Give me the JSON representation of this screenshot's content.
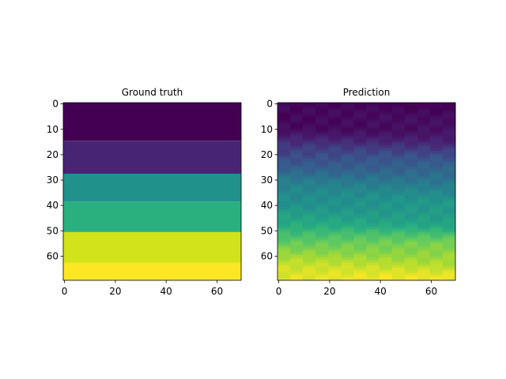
{
  "chart_data": [
    {
      "type": "heatmap",
      "title": "Ground truth",
      "grid_size": [
        70,
        70
      ],
      "x_ticks": [
        0,
        20,
        40,
        60
      ],
      "y_ticks": [
        0,
        10,
        20,
        30,
        40,
        50,
        60
      ],
      "xlim": [
        0,
        69
      ],
      "ylim": [
        69,
        0
      ],
      "y_axis_inverted": true,
      "colormap": "viridis",
      "pattern": "horizontal layers, value increasing with row index",
      "row_bands": [
        {
          "rows": [
            0,
            14
          ],
          "value": 0.0,
          "color": "#440154"
        },
        {
          "rows": [
            15,
            27
          ],
          "value": 0.12,
          "color": "#482475"
        },
        {
          "rows": [
            28,
            38
          ],
          "value": 0.45,
          "color": "#21918c"
        },
        {
          "rows": [
            39,
            50
          ],
          "value": 0.65,
          "color": "#2ab07f"
        },
        {
          "rows": [
            51,
            62
          ],
          "value": 0.9,
          "color": "#d2e21b"
        },
        {
          "rows": [
            63,
            69
          ],
          "value": 1.0,
          "color": "#fde725"
        }
      ]
    },
    {
      "type": "heatmap",
      "title": "Prediction",
      "grid_size": [
        70,
        70
      ],
      "x_ticks": [
        0,
        20,
        40,
        60
      ],
      "y_ticks": [
        0,
        10,
        20,
        30,
        40,
        50,
        60
      ],
      "xlim": [
        0,
        69
      ],
      "ylim": [
        69,
        0
      ],
      "y_axis_inverted": true,
      "colormap": "viridis",
      "pattern": "smooth vertical gradient with slight horizontal texture",
      "row_profile": [
        {
          "row": 0,
          "value": 0.0
        },
        {
          "row": 10,
          "value": 0.05
        },
        {
          "row": 20,
          "value": 0.22
        },
        {
          "row": 30,
          "value": 0.4
        },
        {
          "row": 40,
          "value": 0.52
        },
        {
          "row": 48,
          "value": 0.6
        },
        {
          "row": 55,
          "value": 0.78
        },
        {
          "row": 62,
          "value": 0.88
        },
        {
          "row": 69,
          "value": 0.97
        }
      ]
    }
  ],
  "colors": {
    "viridis_stops": [
      "#440154",
      "#482475",
      "#3b528b",
      "#2c728e",
      "#21918c",
      "#28ae80",
      "#5ec962",
      "#addc30",
      "#fde725"
    ]
  }
}
